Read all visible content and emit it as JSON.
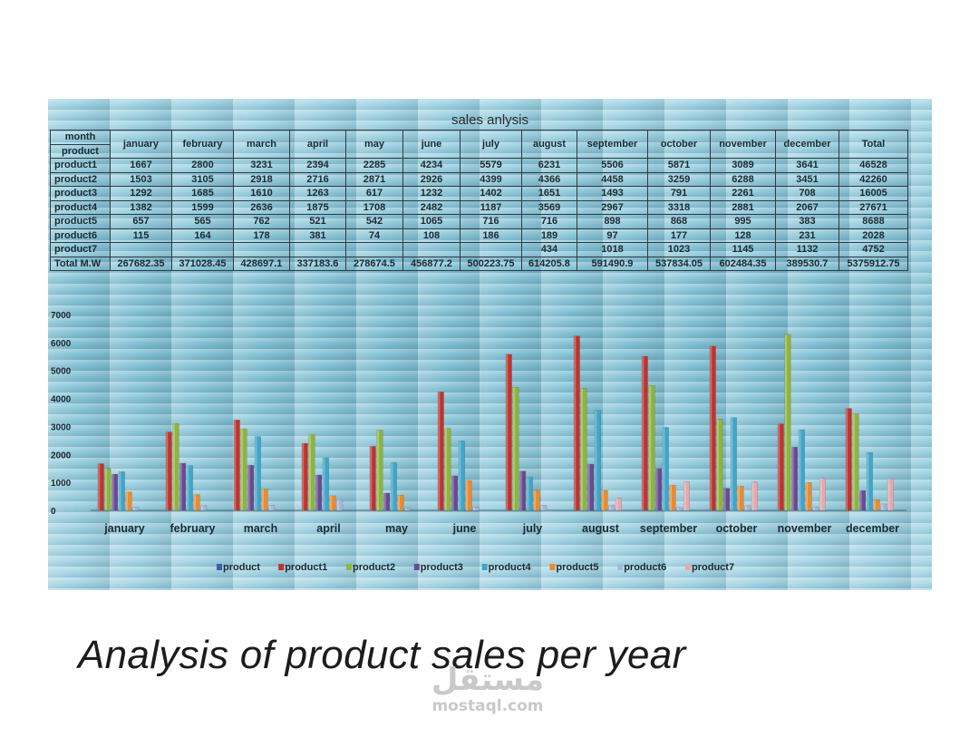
{
  "sheet_title": "sales anlysis",
  "table": {
    "corner_top": "month",
    "corner_bottom": "product",
    "months": [
      "january",
      "february",
      "march",
      "april",
      "may",
      "june",
      "july",
      "august",
      "september",
      "october",
      "november",
      "december"
    ],
    "total_label": "Total",
    "rows": [
      {
        "label": "product1",
        "values": [
          "1667",
          "2800",
          "3231",
          "2394",
          "2285",
          "4234",
          "5579",
          "6231",
          "5506",
          "5871",
          "3089",
          "3641"
        ],
        "total": "46528"
      },
      {
        "label": "product2",
        "values": [
          "1503",
          "3105",
          "2918",
          "2716",
          "2871",
          "2926",
          "4399",
          "4366",
          "4458",
          "3259",
          "6288",
          "3451"
        ],
        "total": "42260"
      },
      {
        "label": "product3",
        "values": [
          "1292",
          "1685",
          "1610",
          "1263",
          "617",
          "1232",
          "1402",
          "1651",
          "1493",
          "791",
          "2261",
          "708"
        ],
        "total": "16005"
      },
      {
        "label": "product4",
        "values": [
          "1382",
          "1599",
          "2636",
          "1875",
          "1708",
          "2482",
          "1187",
          "3569",
          "2967",
          "3318",
          "2881",
          "2067"
        ],
        "total": "27671"
      },
      {
        "label": "product5",
        "values": [
          "657",
          "565",
          "762",
          "521",
          "542",
          "1065",
          "716",
          "716",
          "898",
          "868",
          "995",
          "383"
        ],
        "total": "8688"
      },
      {
        "label": "product6",
        "values": [
          "115",
          "164",
          "178",
          "381",
          "74",
          "108",
          "186",
          "189",
          "97",
          "177",
          "128",
          "231"
        ],
        "total": "2028"
      },
      {
        "label": "product7",
        "values": [
          "",
          "",
          "",
          "",
          "",
          "",
          "",
          "434",
          "1018",
          "1023",
          "1145",
          "1132"
        ],
        "total": "4752"
      },
      {
        "label": "Total M.W",
        "values": [
          "267682.35",
          "371028.45",
          "428697.1",
          "337183.6",
          "278674.5",
          "456877.2",
          "500223.75",
          "614205.8",
          "591490.9",
          "537834.05",
          "602484.35",
          "389530.7"
        ],
        "total": "5375912.75"
      }
    ]
  },
  "chart_data": {
    "type": "bar",
    "categories": [
      "january",
      "february",
      "march",
      "april",
      "may",
      "june",
      "july",
      "august",
      "september",
      "october",
      "november",
      "december"
    ],
    "series": [
      {
        "name": "product",
        "color": "#3a5fae",
        "values": [
          0,
          0,
          0,
          0,
          0,
          0,
          0,
          0,
          0,
          0,
          0,
          0
        ]
      },
      {
        "name": "product1",
        "color": "#c0332e",
        "values": [
          1667,
          2800,
          3231,
          2394,
          2285,
          4234,
          5579,
          6231,
          5506,
          5871,
          3089,
          3641
        ]
      },
      {
        "name": "product2",
        "color": "#8fb53a",
        "values": [
          1503,
          3105,
          2918,
          2716,
          2871,
          2926,
          4399,
          4366,
          4458,
          3259,
          6288,
          3451
        ]
      },
      {
        "name": "product3",
        "color": "#6a4a93",
        "values": [
          1292,
          1685,
          1610,
          1263,
          617,
          1232,
          1402,
          1651,
          1493,
          791,
          2261,
          708
        ]
      },
      {
        "name": "product4",
        "color": "#3fa6c8",
        "values": [
          1382,
          1599,
          2636,
          1875,
          1708,
          2482,
          1187,
          3569,
          2967,
          3318,
          2881,
          2067
        ]
      },
      {
        "name": "product5",
        "color": "#ec8a2c",
        "values": [
          657,
          565,
          762,
          521,
          542,
          1065,
          716,
          716,
          898,
          868,
          995,
          383
        ]
      },
      {
        "name": "product6",
        "color": "#a7b6dc",
        "values": [
          115,
          164,
          178,
          381,
          74,
          108,
          186,
          189,
          97,
          177,
          128,
          231
        ]
      },
      {
        "name": "product7",
        "color": "#e7a8ad",
        "values": [
          0,
          0,
          0,
          0,
          0,
          0,
          0,
          434,
          1018,
          1023,
          1145,
          1132
        ]
      }
    ],
    "ylim": [
      0,
      7000
    ],
    "yticks": [
      0,
      1000,
      2000,
      3000,
      4000,
      5000,
      6000,
      7000
    ],
    "legend_position": "bottom"
  },
  "caption": "Analysis of product sales per year",
  "watermark": {
    "arabic": "مستقل",
    "latin": "mostaql.com"
  }
}
